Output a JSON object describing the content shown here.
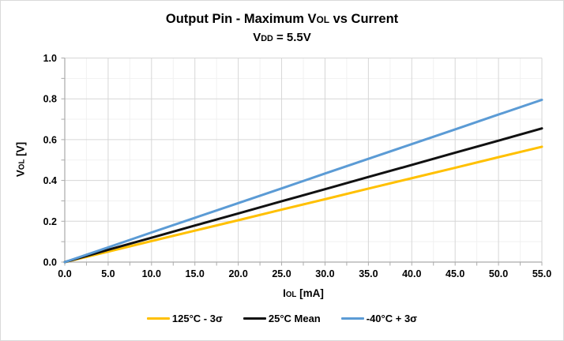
{
  "title": {
    "line1_prefix": "Output Pin - Maximum V",
    "line1_sub": "OL",
    "line1_suffix": " vs Current",
    "line2_prefix": "V",
    "line2_sub": "DD",
    "line2_suffix": " = 5.5V"
  },
  "axes": {
    "y_title_prefix": "V",
    "y_title_sub": "OL",
    "y_title_suffix": " [V]",
    "x_title_prefix": "I",
    "x_title_sub": "OL",
    "x_title_suffix": " [mA]"
  },
  "chart_data": {
    "type": "line",
    "title": "Output Pin - Maximum VOL vs Current",
    "subtitle": "VDD = 5.5V",
    "xlabel": "IOL [mA]",
    "ylabel": "VOL [V]",
    "xlim": [
      0,
      55
    ],
    "ylim": [
      0,
      1.0
    ],
    "x_major_step": 5,
    "x_minor_step": 2.5,
    "y_major_step": 0.2,
    "y_minor_step": 0.1,
    "grid": "major+minor",
    "legend_position": "bottom",
    "x_tick_labels": [
      "0.0",
      "5.0",
      "10.0",
      "15.0",
      "20.0",
      "25.0",
      "30.0",
      "35.0",
      "40.0",
      "45.0",
      "50.0",
      "55.0"
    ],
    "y_tick_labels": [
      "0.0",
      "0.2",
      "0.4",
      "0.6",
      "0.8",
      "1.0"
    ],
    "x": [
      0,
      5,
      10,
      15,
      20,
      25,
      30,
      35,
      40,
      45,
      50,
      55
    ],
    "series": [
      {
        "name": "125°C - 3σ",
        "color": "#FFC000",
        "values": [
          0,
          0.051,
          0.103,
          0.154,
          0.205,
          0.257,
          0.308,
          0.36,
          0.411,
          0.462,
          0.514,
          0.565
        ]
      },
      {
        "name": "25°C Mean",
        "color": "#111111",
        "values": [
          0,
          0.06,
          0.119,
          0.179,
          0.238,
          0.298,
          0.357,
          0.417,
          0.476,
          0.536,
          0.595,
          0.655
        ]
      },
      {
        "name": "-40°C + 3σ",
        "color": "#5B9BD5",
        "values": [
          0,
          0.072,
          0.145,
          0.217,
          0.289,
          0.361,
          0.434,
          0.506,
          0.578,
          0.65,
          0.723,
          0.795
        ]
      }
    ],
    "style": {
      "major_grid": "#d6d6d6",
      "minor_grid": "#f1f1f1",
      "axis": "#ababab",
      "tick": "#ababab",
      "text": "#000000",
      "line_width": 3
    }
  }
}
